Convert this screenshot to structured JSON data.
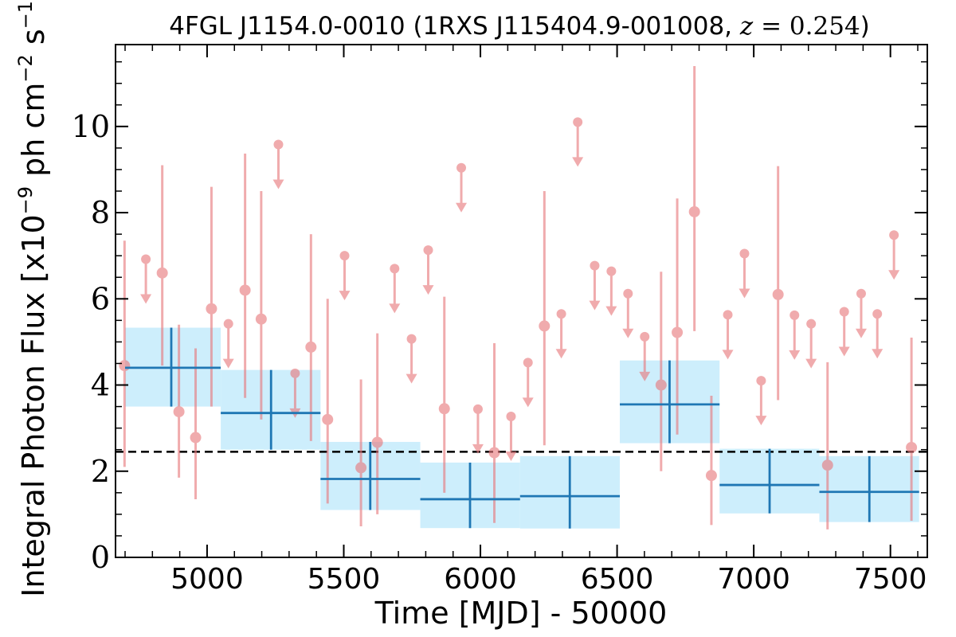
{
  "chart_data": {
    "type": "scatter",
    "title": {
      "prefix": "4FGL J1154.0-0010 (1RXS J115404.9-001008, ",
      "math_var": "z",
      "math_rest": " = 0.254",
      "suffix": ")"
    },
    "xlabel": "Time [MJD] - 50000",
    "ylabel": {
      "prefix": "Integral Photon Flux [x10",
      "exp1": "−9",
      "mid": " ph cm",
      "exp2": "−2",
      "mid2": " s",
      "exp3": "−1",
      "suffix": "]"
    },
    "xlim": [
      4665,
      7635
    ],
    "ylim": [
      0,
      11.9
    ],
    "x_ticks": [
      5000,
      5500,
      6000,
      6500,
      7000,
      7500
    ],
    "y_ticks": [
      0,
      2,
      4,
      6,
      8,
      10
    ],
    "grid": false,
    "legend": "none",
    "colors": {
      "points": "#e8787c",
      "bins_line": "#1f77b4",
      "bins_fill": "#cdeefc",
      "mean_line": "#000000"
    },
    "mean_flux": 2.45,
    "detections": [
      {
        "x": 4698,
        "y": 4.45,
        "ylo": 2.1,
        "yhi": 7.35
      },
      {
        "x": 4836,
        "y": 6.6,
        "ylo": 4.45,
        "yhi": 9.1
      },
      {
        "x": 4897,
        "y": 3.38,
        "ylo": 1.85,
        "yhi": 5.4
      },
      {
        "x": 4958,
        "y": 2.78,
        "ylo": 1.35,
        "yhi": 4.85
      },
      {
        "x": 5016,
        "y": 5.77,
        "ylo": 3.5,
        "yhi": 8.6
      },
      {
        "x": 5139,
        "y": 6.2,
        "ylo": 3.7,
        "yhi": 9.37
      },
      {
        "x": 5198,
        "y": 5.53,
        "ylo": 3.2,
        "yhi": 8.5
      },
      {
        "x": 5380,
        "y": 4.88,
        "ylo": 2.7,
        "yhi": 7.5
      },
      {
        "x": 5441,
        "y": 3.2,
        "ylo": 1.25,
        "yhi": 6.0
      },
      {
        "x": 5563,
        "y": 2.08,
        "ylo": 0.72,
        "yhi": 4.13
      },
      {
        "x": 5623,
        "y": 2.67,
        "ylo": 1.0,
        "yhi": 5.2
      },
      {
        "x": 5868,
        "y": 3.45,
        "ylo": 1.5,
        "yhi": 6.05
      },
      {
        "x": 6051,
        "y": 2.43,
        "ylo": 0.8,
        "yhi": 4.97
      },
      {
        "x": 6234,
        "y": 5.37,
        "ylo": 2.6,
        "yhi": 8.5
      },
      {
        "x": 6661,
        "y": 4.0,
        "ylo": 2.0,
        "yhi": 6.63
      },
      {
        "x": 6720,
        "y": 5.22,
        "ylo": 2.85,
        "yhi": 8.33
      },
      {
        "x": 6783,
        "y": 8.02,
        "ylo": 5.25,
        "yhi": 11.4
      },
      {
        "x": 6845,
        "y": 1.9,
        "ylo": 0.75,
        "yhi": 3.75
      },
      {
        "x": 7089,
        "y": 6.1,
        "ylo": 3.65,
        "yhi": 9.08
      },
      {
        "x": 7270,
        "y": 2.14,
        "ylo": 0.65,
        "yhi": 4.53
      },
      {
        "x": 7577,
        "y": 2.55,
        "ylo": 0.85,
        "yhi": 5.1
      }
    ],
    "upper_limits": [
      {
        "x": 4776,
        "y": 6.92
      },
      {
        "x": 5078,
        "y": 5.42
      },
      {
        "x": 5261,
        "y": 9.58
      },
      {
        "x": 5322,
        "y": 4.27
      },
      {
        "x": 5503,
        "y": 7.0
      },
      {
        "x": 5686,
        "y": 6.7
      },
      {
        "x": 5748,
        "y": 5.07
      },
      {
        "x": 5809,
        "y": 7.13
      },
      {
        "x": 5930,
        "y": 9.04
      },
      {
        "x": 5991,
        "y": 3.44
      },
      {
        "x": 6112,
        "y": 3.27
      },
      {
        "x": 6174,
        "y": 4.52
      },
      {
        "x": 6296,
        "y": 5.65
      },
      {
        "x": 6356,
        "y": 10.1
      },
      {
        "x": 6418,
        "y": 6.77
      },
      {
        "x": 6479,
        "y": 6.64
      },
      {
        "x": 6540,
        "y": 6.12
      },
      {
        "x": 6601,
        "y": 5.12
      },
      {
        "x": 6905,
        "y": 5.63
      },
      {
        "x": 6966,
        "y": 7.05
      },
      {
        "x": 7027,
        "y": 4.1
      },
      {
        "x": 7149,
        "y": 5.62
      },
      {
        "x": 7210,
        "y": 5.42
      },
      {
        "x": 7331,
        "y": 5.7
      },
      {
        "x": 7393,
        "y": 6.12
      },
      {
        "x": 7452,
        "y": 5.65
      },
      {
        "x": 7513,
        "y": 7.48
      }
    ],
    "bins": [
      {
        "x": 4869,
        "x0": 4700,
        "x1": 5050,
        "y": 4.4,
        "ylo": 3.5,
        "yhi": 5.33
      },
      {
        "x": 5234,
        "x0": 5050,
        "x1": 5415,
        "y": 3.35,
        "ylo": 2.5,
        "yhi": 4.35
      },
      {
        "x": 5597,
        "x0": 5415,
        "x1": 5780,
        "y": 1.82,
        "ylo": 1.1,
        "yhi": 2.68
      },
      {
        "x": 5962,
        "x0": 5780,
        "x1": 6145,
        "y": 1.35,
        "ylo": 0.68,
        "yhi": 2.2
      },
      {
        "x": 6327,
        "x0": 6145,
        "x1": 6510,
        "y": 1.42,
        "ylo": 0.67,
        "yhi": 2.35
      },
      {
        "x": 6692,
        "x0": 6510,
        "x1": 6875,
        "y": 3.55,
        "ylo": 2.65,
        "yhi": 4.57
      },
      {
        "x": 7058,
        "x0": 6875,
        "x1": 7240,
        "y": 1.68,
        "ylo": 1.02,
        "yhi": 2.52
      },
      {
        "x": 7423,
        "x0": 7240,
        "x1": 7605,
        "y": 1.52,
        "ylo": 0.82,
        "yhi": 2.35
      }
    ]
  }
}
